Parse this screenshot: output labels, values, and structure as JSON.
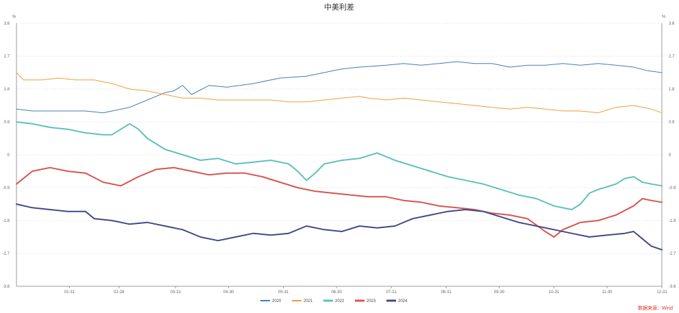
{
  "chart_data": {
    "type": "line",
    "title": "中美利差",
    "unit_left": "%",
    "unit_right": "%",
    "ylim": [
      -3.6,
      3.6
    ],
    "y_ticks": [
      3.6,
      2.7,
      1.8,
      0.9,
      0,
      -0.9,
      -1.8,
      -2.7,
      -3.6
    ],
    "x_tick_labels": [
      "01-31",
      "02-28",
      "03-31",
      "04-30",
      "05-31",
      "06-30",
      "07-31",
      "08-31",
      "09-30",
      "10-31",
      "11-30",
      "12-31"
    ],
    "grid": true,
    "legend_position": "bottom",
    "source": "数据来源：Wind",
    "series": [
      {
        "name": "2020",
        "color": "#3b7eb7",
        "stroke_width": 1,
        "points": [
          [
            1,
            1.25
          ],
          [
            10,
            1.2
          ],
          [
            20,
            1.2
          ],
          [
            40,
            1.2
          ],
          [
            50,
            1.15
          ],
          [
            65,
            1.3
          ],
          [
            75,
            1.5
          ],
          [
            85,
            1.7
          ],
          [
            90,
            1.75
          ],
          [
            95,
            1.9
          ],
          [
            100,
            1.65
          ],
          [
            110,
            1.9
          ],
          [
            120,
            1.85
          ],
          [
            135,
            1.95
          ],
          [
            150,
            2.1
          ],
          [
            165,
            2.15
          ],
          [
            175,
            2.25
          ],
          [
            180,
            2.3
          ],
          [
            185,
            2.35
          ],
          [
            195,
            2.4
          ],
          [
            210,
            2.45
          ],
          [
            220,
            2.5
          ],
          [
            230,
            2.45
          ],
          [
            240,
            2.5
          ],
          [
            250,
            2.55
          ],
          [
            260,
            2.5
          ],
          [
            270,
            2.5
          ],
          [
            280,
            2.4
          ],
          [
            290,
            2.45
          ],
          [
            300,
            2.45
          ],
          [
            310,
            2.5
          ],
          [
            320,
            2.45
          ],
          [
            330,
            2.5
          ],
          [
            340,
            2.45
          ],
          [
            350,
            2.4
          ],
          [
            358,
            2.3
          ],
          [
            366,
            2.25
          ]
        ]
      },
      {
        "name": "2021",
        "color": "#f19a38",
        "stroke_width": 1,
        "points": [
          [
            1,
            2.25
          ],
          [
            5,
            2.05
          ],
          [
            15,
            2.05
          ],
          [
            25,
            2.1
          ],
          [
            35,
            2.05
          ],
          [
            45,
            2.05
          ],
          [
            55,
            1.95
          ],
          [
            65,
            1.8
          ],
          [
            75,
            1.75
          ],
          [
            85,
            1.65
          ],
          [
            95,
            1.55
          ],
          [
            105,
            1.55
          ],
          [
            115,
            1.5
          ],
          [
            125,
            1.5
          ],
          [
            135,
            1.5
          ],
          [
            145,
            1.5
          ],
          [
            155,
            1.45
          ],
          [
            165,
            1.45
          ],
          [
            175,
            1.5
          ],
          [
            185,
            1.55
          ],
          [
            195,
            1.6
          ],
          [
            200,
            1.55
          ],
          [
            210,
            1.5
          ],
          [
            220,
            1.55
          ],
          [
            230,
            1.5
          ],
          [
            240,
            1.45
          ],
          [
            250,
            1.4
          ],
          [
            260,
            1.35
          ],
          [
            270,
            1.3
          ],
          [
            280,
            1.25
          ],
          [
            290,
            1.3
          ],
          [
            300,
            1.25
          ],
          [
            310,
            1.2
          ],
          [
            320,
            1.2
          ],
          [
            330,
            1.15
          ],
          [
            340,
            1.3
          ],
          [
            350,
            1.35
          ],
          [
            360,
            1.25
          ],
          [
            366,
            1.15
          ]
        ]
      },
      {
        "name": "2022",
        "color": "#5ec0bc",
        "stroke_width": 2,
        "points": [
          [
            1,
            0.9
          ],
          [
            10,
            0.85
          ],
          [
            20,
            0.75
          ],
          [
            30,
            0.7
          ],
          [
            40,
            0.6
          ],
          [
            50,
            0.55
          ],
          [
            55,
            0.55
          ],
          [
            60,
            0.7
          ],
          [
            65,
            0.85
          ],
          [
            70,
            0.7
          ],
          [
            75,
            0.45
          ],
          [
            80,
            0.3
          ],
          [
            85,
            0.15
          ],
          [
            95,
            0.0
          ],
          [
            105,
            -0.15
          ],
          [
            115,
            -0.1
          ],
          [
            125,
            -0.25
          ],
          [
            135,
            -0.2
          ],
          [
            145,
            -0.15
          ],
          [
            155,
            -0.25
          ],
          [
            160,
            -0.45
          ],
          [
            165,
            -0.7
          ],
          [
            170,
            -0.5
          ],
          [
            175,
            -0.25
          ],
          [
            185,
            -0.15
          ],
          [
            195,
            -0.1
          ],
          [
            205,
            0.05
          ],
          [
            215,
            -0.15
          ],
          [
            225,
            -0.3
          ],
          [
            235,
            -0.45
          ],
          [
            245,
            -0.6
          ],
          [
            255,
            -0.7
          ],
          [
            265,
            -0.8
          ],
          [
            275,
            -0.95
          ],
          [
            285,
            -1.1
          ],
          [
            295,
            -1.2
          ],
          [
            305,
            -1.4
          ],
          [
            315,
            -1.5
          ],
          [
            320,
            -1.35
          ],
          [
            325,
            -1.05
          ],
          [
            330,
            -0.95
          ],
          [
            340,
            -0.8
          ],
          [
            345,
            -0.65
          ],
          [
            350,
            -0.6
          ],
          [
            355,
            -0.75
          ],
          [
            360,
            -0.8
          ],
          [
            366,
            -0.85
          ]
        ]
      },
      {
        "name": "2023",
        "color": "#d9534f",
        "stroke_width": 2,
        "points": [
          [
            1,
            -0.8
          ],
          [
            10,
            -0.45
          ],
          [
            20,
            -0.35
          ],
          [
            30,
            -0.45
          ],
          [
            40,
            -0.5
          ],
          [
            50,
            -0.75
          ],
          [
            60,
            -0.85
          ],
          [
            70,
            -0.6
          ],
          [
            80,
            -0.4
          ],
          [
            90,
            -0.35
          ],
          [
            100,
            -0.45
          ],
          [
            110,
            -0.55
          ],
          [
            120,
            -0.5
          ],
          [
            130,
            -0.5
          ],
          [
            140,
            -0.6
          ],
          [
            150,
            -0.75
          ],
          [
            160,
            -0.9
          ],
          [
            170,
            -1.0
          ],
          [
            180,
            -1.05
          ],
          [
            190,
            -1.1
          ],
          [
            200,
            -1.15
          ],
          [
            210,
            -1.15
          ],
          [
            220,
            -1.25
          ],
          [
            230,
            -1.3
          ],
          [
            240,
            -1.4
          ],
          [
            250,
            -1.45
          ],
          [
            260,
            -1.5
          ],
          [
            270,
            -1.6
          ],
          [
            280,
            -1.65
          ],
          [
            290,
            -1.75
          ],
          [
            300,
            -2.1
          ],
          [
            305,
            -2.25
          ],
          [
            310,
            -2.05
          ],
          [
            320,
            -1.85
          ],
          [
            330,
            -1.8
          ],
          [
            340,
            -1.65
          ],
          [
            350,
            -1.4
          ],
          [
            355,
            -1.2
          ],
          [
            360,
            -1.25
          ],
          [
            366,
            -1.3
          ]
        ]
      },
      {
        "name": "2024",
        "color": "#3e4a86",
        "stroke_width": 2,
        "points": [
          [
            1,
            -1.35
          ],
          [
            10,
            -1.45
          ],
          [
            20,
            -1.5
          ],
          [
            30,
            -1.55
          ],
          [
            40,
            -1.55
          ],
          [
            45,
            -1.75
          ],
          [
            55,
            -1.8
          ],
          [
            65,
            -1.9
          ],
          [
            75,
            -1.85
          ],
          [
            85,
            -1.95
          ],
          [
            95,
            -2.05
          ],
          [
            105,
            -2.25
          ],
          [
            115,
            -2.35
          ],
          [
            125,
            -2.25
          ],
          [
            135,
            -2.15
          ],
          [
            145,
            -2.2
          ],
          [
            155,
            -2.15
          ],
          [
            165,
            -1.95
          ],
          [
            175,
            -2.05
          ],
          [
            185,
            -2.1
          ],
          [
            195,
            -1.95
          ],
          [
            205,
            -2.0
          ],
          [
            215,
            -1.95
          ],
          [
            225,
            -1.75
          ],
          [
            235,
            -1.65
          ],
          [
            245,
            -1.55
          ],
          [
            255,
            -1.5
          ],
          [
            265,
            -1.55
          ],
          [
            275,
            -1.7
          ],
          [
            285,
            -1.85
          ],
          [
            295,
            -1.95
          ],
          [
            305,
            -2.05
          ],
          [
            315,
            -2.15
          ],
          [
            325,
            -2.25
          ],
          [
            335,
            -2.2
          ],
          [
            345,
            -2.15
          ],
          [
            350,
            -2.1
          ],
          [
            355,
            -2.3
          ],
          [
            360,
            -2.5
          ],
          [
            366,
            -2.6
          ]
        ]
      }
    ]
  }
}
